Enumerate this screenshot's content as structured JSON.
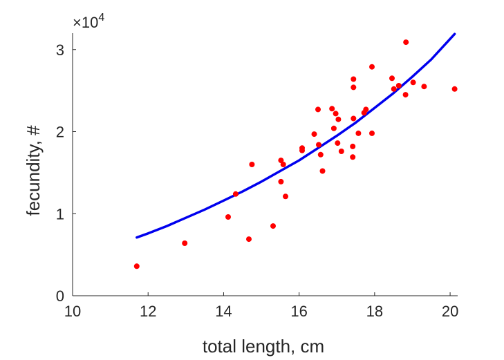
{
  "chart_data": {
    "type": "scatter",
    "title": "",
    "xlabel": "total length, cm",
    "ylabel": "fecundity, #",
    "xlim": [
      10,
      20.2
    ],
    "ylim": [
      0,
      3.2
    ],
    "x_ticks": [
      10,
      12,
      14,
      16,
      18,
      20
    ],
    "y_ticks": [
      0,
      1,
      2,
      3
    ],
    "x_tick_labels": [
      "10",
      "12",
      "14",
      "16",
      "18",
      "20"
    ],
    "y_tick_labels": [
      "0",
      "1",
      "2",
      "3"
    ],
    "y_exponent_base": "×10",
    "y_exponent_power": "4",
    "grid": false,
    "legend": "none",
    "series": [
      {
        "kind": "points",
        "color": "#ff0000",
        "points": [
          [
            11.7,
            0.36
          ],
          [
            12.97,
            0.64
          ],
          [
            14.12,
            0.96
          ],
          [
            14.32,
            1.24
          ],
          [
            14.67,
            0.69
          ],
          [
            14.75,
            1.6
          ],
          [
            15.31,
            0.85
          ],
          [
            15.52,
            1.39
          ],
          [
            15.52,
            1.65
          ],
          [
            15.58,
            1.6
          ],
          [
            15.64,
            1.21
          ],
          [
            16.08,
            1.77
          ],
          [
            16.08,
            1.8
          ],
          [
            16.4,
            1.97
          ],
          [
            16.5,
            2.27
          ],
          [
            16.52,
            1.84
          ],
          [
            16.57,
            1.72
          ],
          [
            16.62,
            1.52
          ],
          [
            16.87,
            2.28
          ],
          [
            16.92,
            2.04
          ],
          [
            16.97,
            2.22
          ],
          [
            17.02,
            1.86
          ],
          [
            17.04,
            2.15
          ],
          [
            17.12,
            1.76
          ],
          [
            17.42,
            1.69
          ],
          [
            17.42,
            1.82
          ],
          [
            17.44,
            2.16
          ],
          [
            17.44,
            2.54
          ],
          [
            17.44,
            2.64
          ],
          [
            17.57,
            1.98
          ],
          [
            17.72,
            2.23
          ],
          [
            17.77,
            2.27
          ],
          [
            17.93,
            1.98
          ],
          [
            17.93,
            2.79
          ],
          [
            18.46,
            2.65
          ],
          [
            18.51,
            2.52
          ],
          [
            18.64,
            2.56
          ],
          [
            18.82,
            2.45
          ],
          [
            18.83,
            3.09
          ],
          [
            19.02,
            2.6
          ],
          [
            19.31,
            2.55
          ],
          [
            20.12,
            2.52
          ]
        ]
      },
      {
        "kind": "fit-curve",
        "color": "#0000ee",
        "x": [
          11.7,
          12.0,
          12.5,
          13.0,
          13.5,
          14.0,
          14.5,
          15.0,
          15.5,
          16.0,
          16.5,
          17.0,
          17.5,
          18.0,
          18.5,
          19.0,
          19.5,
          20.12
        ],
        "y": [
          0.71,
          0.76,
          0.85,
          0.95,
          1.05,
          1.16,
          1.27,
          1.39,
          1.52,
          1.65,
          1.8,
          1.95,
          2.11,
          2.29,
          2.47,
          2.67,
          2.88,
          3.19
        ]
      }
    ]
  }
}
